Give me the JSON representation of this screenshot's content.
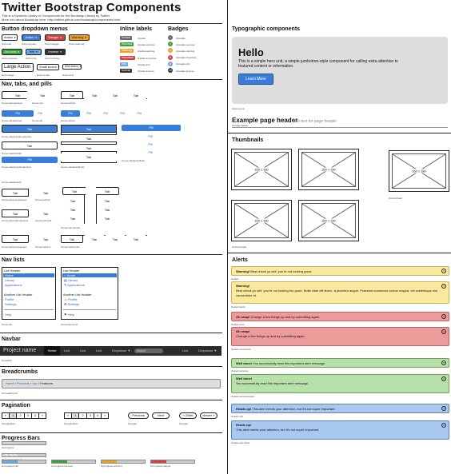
{
  "header": {
    "title": "Twitter Bootstrap Components",
    "sub1": "This is a Symbols Library of Components for the Bootstrap Library by Twitter",
    "sub2": "More info about Bootstrap here: http://twitter.github.com/bootstrap/components.html"
  },
  "dropdowns": {
    "title": "Button dropdown menus",
    "row1": [
      "Action",
      "Action",
      "Danger",
      "Warning"
    ],
    "cap1": [
      "tb-btn-dd",
      "tb-btn-primary",
      "tb-btn-danger",
      "tb-btn-warning"
    ],
    "row2": [
      "Success",
      "Info",
      "Inverse"
    ],
    "cap2": [
      "tb-btn-success",
      "tb-btn-info",
      "tb-btn-inverse"
    ],
    "row3": [
      "Large Action",
      "Small Action",
      "Mini Action"
    ],
    "cap3": [
      "tb-btn-large",
      "tb-btn-small",
      "tb-btn-mini"
    ]
  },
  "inline_labels": {
    "title": "Inline labels",
    "items": [
      "Default",
      "Success",
      "Warning",
      "Important",
      "Info",
      "Inverse"
    ],
    "caps": [
      "tb-label",
      "tb-label-success",
      "tb-label-warning",
      "tb-label-important",
      "tb-label-info",
      "tb-label-inverse"
    ]
  },
  "badges": {
    "title": "Badges",
    "items": [
      "1",
      "2",
      "4",
      "6",
      "8",
      "10"
    ],
    "caps": [
      "tb-badge",
      "tb-badge-success",
      "tb-badge-warning",
      "tb-badge-important",
      "tb-badge-info",
      "tb-badge-inverse"
    ]
  },
  "navs": {
    "title": "Nav, tabs, and pills",
    "tab": "Tab",
    "pill": "Pill",
    "caps": {
      "tab_sel": "tb-nav-tab-selected",
      "tab": "tb-nav-tab",
      "tab_list": "tb-nav-tab-list",
      "pill_sel": "tb-nav-pill-selected",
      "pill": "tb-nav-pill",
      "pill_list": "tb-nav-pill-list",
      "stk_sel": "tb-nav-stacked-tab-selected",
      "stk": "tb-nav-stacked-tab",
      "stk_list": "tb-nav-stacked-tab-list",
      "stk_pill_list": "tb-nav-stacked-pill-list",
      "stk_pill_sel": "tb-nav-stacked-pill-selected",
      "stk_pill": "tb-nav-stacked-pill",
      "left_sel": "tb-nav-tab-left-selected",
      "left": "tb-nav-tab-left",
      "vert_list": "tb-nav-tab-vert-list",
      "right_sel": "tb-nav-tab-right-selected",
      "right": "tb-nav-tab-right",
      "bot_sel": "tb-nav-tab-bot-selected",
      "bot": "tb-nav-tab-bot",
      "bot_list": "tb-nav-tab-bot-list"
    }
  },
  "nav_lists": {
    "title": "Nav lists",
    "header": "List Header",
    "items": [
      "Home",
      "Library",
      "Applications"
    ],
    "header2": "Another List Header",
    "items2": [
      "Profile",
      "Settings"
    ],
    "help": "Help",
    "cap1": "tb-nav-list",
    "cap2": "tb-nav-list-icons"
  },
  "navbar": {
    "title": "Navbar",
    "brand": "Project name",
    "links": [
      "Home",
      "Link",
      "Link",
      "Link"
    ],
    "dropdown": "Dropdown",
    "search": "Search",
    "right_link": "Link",
    "right_dropdown": "Dropdown",
    "cap": "tb-navbar"
  },
  "breadcrumbs": {
    "title": "Breadcrumbs",
    "items": [
      "Home",
      "Products",
      "Xyz",
      "Features"
    ],
    "cap": "tb-breadcrumb"
  },
  "pagination": {
    "title": "Pagination",
    "pages": [
      "«",
      "1",
      "2",
      "3",
      "4",
      "»"
    ],
    "prev": "Previous",
    "next": "Next",
    "older": "« Older",
    "newer": "Newer »",
    "caps": [
      "tb-pagination",
      "tb-pagination",
      "tb-pager",
      "tb-pager"
    ]
  },
  "progress": {
    "title": "Progress Bars",
    "caps": [
      "tb-progress",
      "tb-progress-striped",
      "tb-progress-info",
      "tb-progress-success",
      "tb-progress-warning",
      "tb-progress-danger"
    ],
    "values": [
      0.45,
      0.35,
      0.35,
      0.35,
      0.35,
      0.35
    ],
    "colors": [
      "#d0d0d0",
      "#d0d0d0",
      "#6aa8e0",
      "#3aa03a",
      "#f0a020",
      "#d64040"
    ]
  },
  "typographic": {
    "title": "Typographic components",
    "hero_title": "Hello",
    "hero_text": "This is a simple hero unit, a simple jumbotron-style component for calling extra attention to featured content or information.",
    "hero_button": "Learn More",
    "hero_cap": "tb-hero-unit",
    "page_header": "Example page header",
    "page_sub": "Sub text for page header",
    "page_cap": "tb-page-header"
  },
  "thumbnails": {
    "title": "Thumbnails",
    "size": "160 x 180",
    "cap1": "tb-thumbnail",
    "cap2": "tb-thumbnails"
  },
  "alerts": {
    "title": "Alerts",
    "items": [
      {
        "bold": "Warning!",
        "text": " Best check yo self, you're not looking good.",
        "cap": "tb-alert"
      },
      {
        "bold": "Warning!",
        "text": "Best check yo self, you're not looking too good. Nulla vitae elit libero, a pharetra augue. Praesent commodo cursus magna, vel scelerisque nisl consectetur et.",
        "cap": "tb-alert-block"
      },
      {
        "bold": "Oh snap!",
        "text": " Change a few things up and try submitting again.",
        "cap": "tb-alert-error"
      },
      {
        "bold": "Oh snap!",
        "text": "Change a few things up and try submitting again.",
        "cap": "tb-alert-error-block"
      },
      {
        "bold": "Well done!",
        "text": " You successfully read this important alert message.",
        "cap": "tb-alert-success"
      },
      {
        "bold": "Well done!",
        "text": "You successfully read this important alert message.",
        "cap": "tb-alert-success-block"
      },
      {
        "bold": "Heads up!",
        "text": " This alert needs your attention, but it's not super important.",
        "cap": "tb-alert-info"
      },
      {
        "bold": "Heads up!",
        "text": "This alert needs your attention, but it's not super important.",
        "cap": "tb-alert-info-block"
      }
    ]
  }
}
